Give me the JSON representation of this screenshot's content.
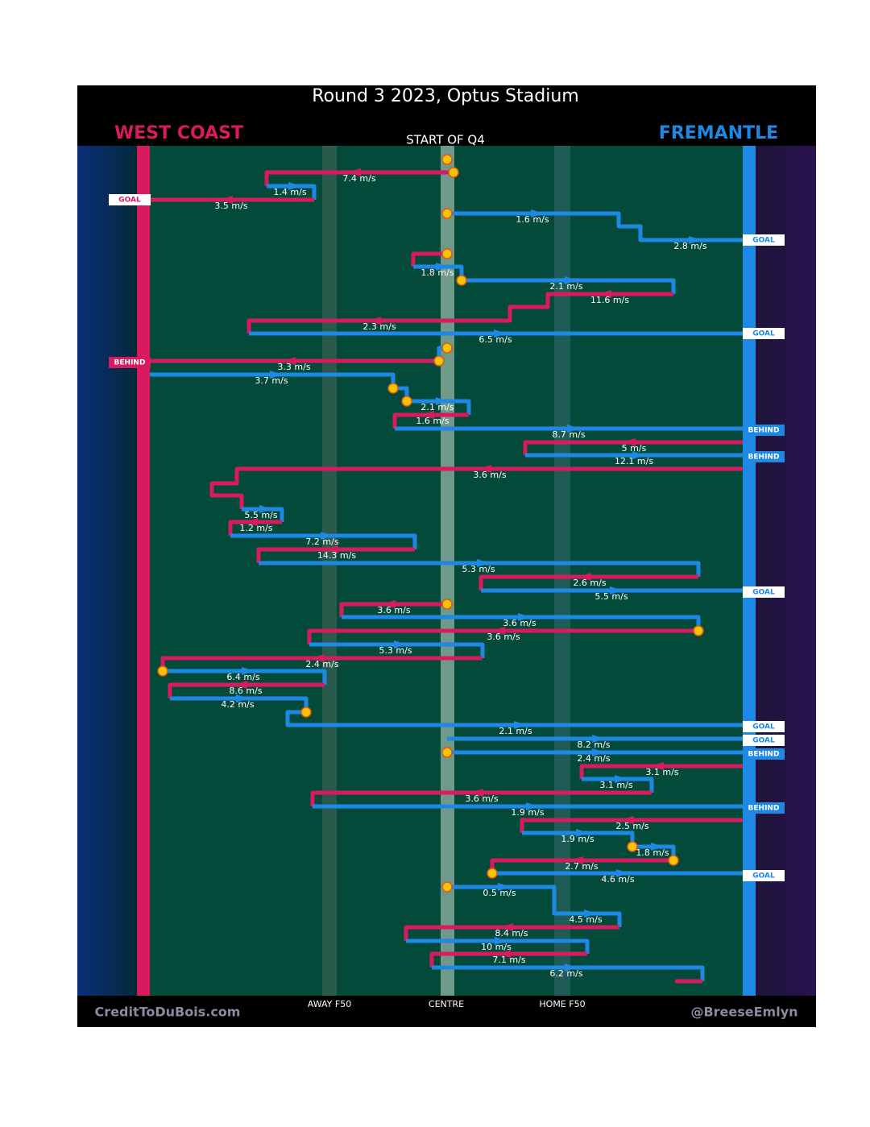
{
  "title": "Round 3 2023, Optus Stadium",
  "teams": {
    "left": "WEST COAST",
    "right": "FREMANTLE"
  },
  "start_label": "START OF Q4",
  "zones": [
    "AWAY F50",
    "CENTRE",
    "HOME F50"
  ],
  "credits": {
    "left": "CreditToDuBois.com",
    "right": "@BreeseEmlyn"
  },
  "speeds": [
    "7.4 m/s",
    "1.4 m/s",
    "3.5 m/s",
    "1.6 m/s",
    "2.8 m/s",
    "1.8 m/s",
    "2.1 m/s",
    "11.6 m/s",
    "2.3 m/s",
    "6.5 m/s",
    "3.3 m/s",
    "3.7 m/s",
    "2.1 m/s",
    "1.6 m/s",
    "8.7 m/s",
    "5 m/s",
    "12.1 m/s",
    "3.6 m/s",
    "5.5 m/s",
    "1.2 m/s",
    "7.2 m/s",
    "14.3 m/s",
    "5.3 m/s",
    "2.6 m/s",
    "5.5 m/s",
    "3.6 m/s",
    "3.6 m/s",
    "3.6 m/s",
    "5.3 m/s",
    "2.4 m/s",
    "6.4 m/s",
    "8.6 m/s",
    "4.2 m/s",
    "2.1 m/s",
    "8.2 m/s",
    "2.4 m/s",
    "3.1 m/s",
    "3.1 m/s",
    "3.6 m/s",
    "1.9 m/s",
    "2.5 m/s",
    "1.9 m/s",
    "1.8 m/s",
    "2.7 m/s",
    "4.6 m/s",
    "0.5 m/s",
    "4.5 m/s",
    "8.4 m/s",
    "10 m/s",
    "7.1 m/s",
    "6.2 m/s"
  ],
  "outcomes": [
    "GOAL",
    "GOAL",
    "GOAL",
    "BEHIND",
    "BEHIND",
    "BEHIND",
    "GOAL",
    "GOAL",
    "GOAL",
    "BEHIND",
    "BEHIND",
    "GOAL"
  ]
}
